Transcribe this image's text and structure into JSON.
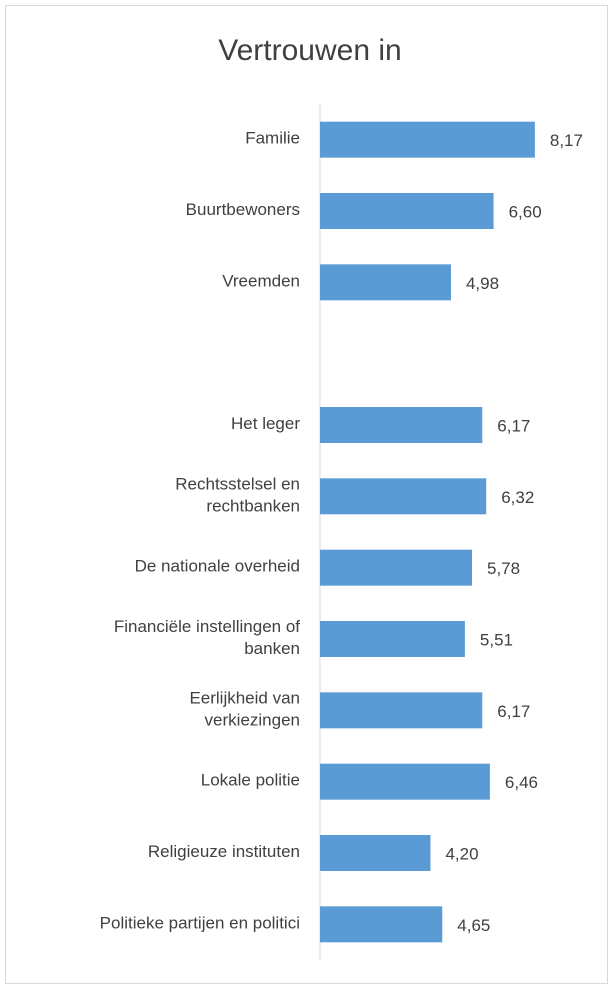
{
  "chart_data": {
    "type": "bar",
    "orientation": "horizontal",
    "title": "Vertrouwen in",
    "categories": [
      "Familie",
      "Buurtbewoners",
      "Vreemden",
      null,
      "Het leger",
      "Rechtsstelsel en\nrechtbanken",
      "De nationale overheid",
      "Financiële instellingen of\nbanken",
      "Eerlijkheid van\nverkiezingen",
      "Lokale politie",
      "Religieuze instituten",
      "Politieke partijen en politici"
    ],
    "values": [
      8.17,
      6.6,
      4.98,
      null,
      6.17,
      6.32,
      5.78,
      5.51,
      6.17,
      6.46,
      4.2,
      4.65
    ],
    "value_labels": [
      "8,17",
      "6,60",
      "4,98",
      null,
      "6,17",
      "6,32",
      "5,78",
      "5,51",
      "6,17",
      "6,46",
      "4,20",
      "4,65"
    ],
    "color": "#5b9bd5",
    "xlim": [
      0,
      10
    ]
  }
}
